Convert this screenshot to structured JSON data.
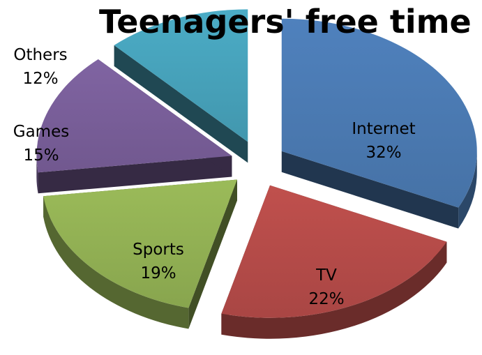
{
  "chart_data": {
    "type": "pie",
    "title": "Teenagers' free time",
    "slices": [
      {
        "label": "Internet",
        "value": 32,
        "value_label": "32%",
        "color": "#4f81bd"
      },
      {
        "label": "TV",
        "value": 22,
        "value_label": "22%",
        "color": "#c0504d"
      },
      {
        "label": "Sports",
        "value": 19,
        "value_label": "19%",
        "color": "#9bbb59"
      },
      {
        "label": "Games",
        "value": 15,
        "value_label": "15%",
        "color": "#8064a2"
      },
      {
        "label": "Others",
        "value": 12,
        "value_label": "12%",
        "color": "#4bacc6"
      }
    ],
    "style": "3d-exploded",
    "legend": "none"
  }
}
